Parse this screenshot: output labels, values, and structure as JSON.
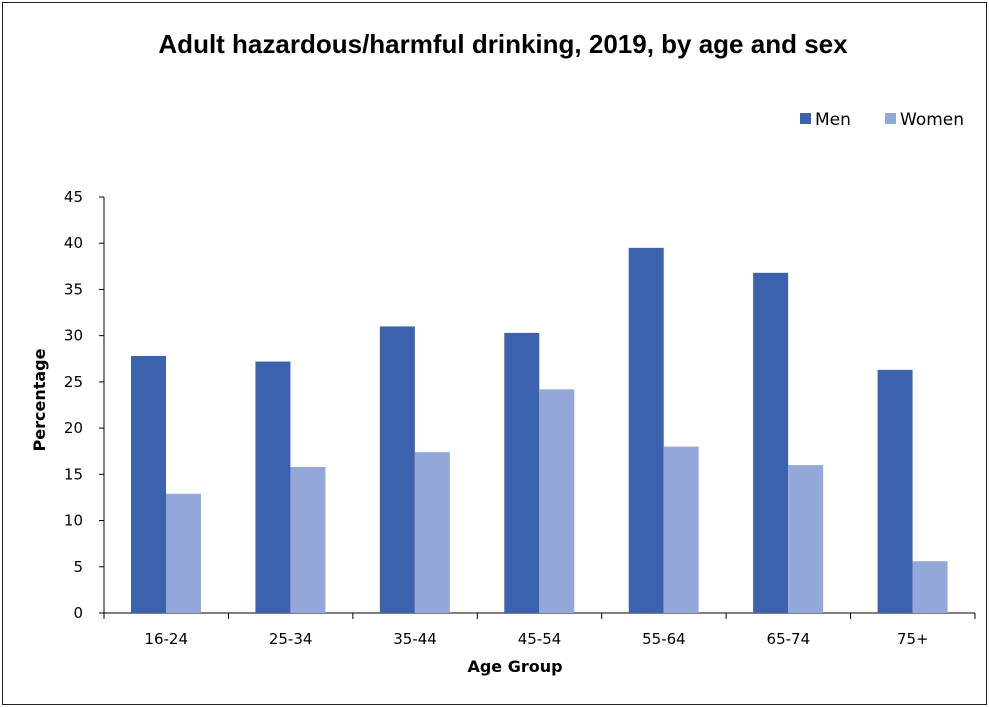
{
  "chart_data": {
    "type": "bar",
    "title": "Adult hazardous/harmful drinking, 2019, by age and sex",
    "xlabel": "Age Group",
    "ylabel": "Percentage",
    "ylim": [
      0,
      45
    ],
    "yticks": [
      0,
      5,
      10,
      15,
      20,
      25,
      30,
      35,
      40,
      45
    ],
    "categories": [
      "16-24",
      "25-34",
      "35-44",
      "45-54",
      "55-64",
      "65-74",
      "75+"
    ],
    "series": [
      {
        "name": "Men",
        "color": "#3c62ad",
        "values": [
          27.8,
          27.2,
          31.0,
          30.3,
          39.5,
          36.8,
          26.3
        ]
      },
      {
        "name": "Women",
        "color": "#93a7d9",
        "values": [
          12.9,
          15.8,
          17.4,
          24.2,
          18.0,
          16.0,
          5.6
        ]
      }
    ],
    "legend_position": "top-right",
    "grid": false
  }
}
